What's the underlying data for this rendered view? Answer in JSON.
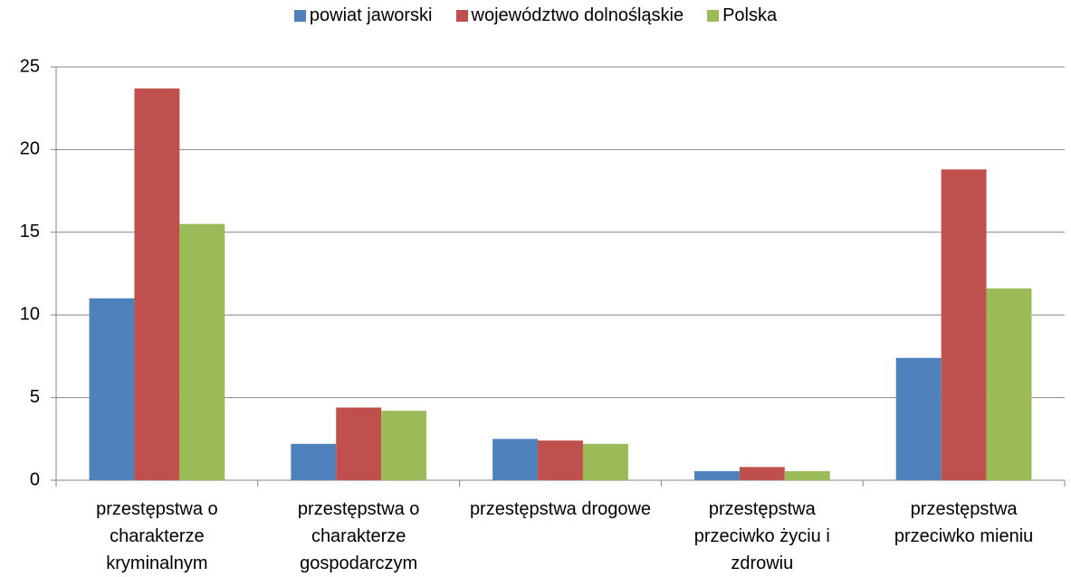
{
  "chart_data": {
    "type": "bar",
    "categories": [
      "przestępstwa o charakterze kryminalnym",
      "przestępstwa o charakterze gospodarczym",
      "przestępstwa drogowe",
      "przestępstwa przeciwko życiu i zdrowiu",
      "przestępstwa przeciwko mieniu"
    ],
    "series": [
      {
        "name": "powiat jaworski",
        "color": "#4f81bd",
        "values": [
          11.0,
          2.2,
          2.5,
          0.55,
          7.4
        ]
      },
      {
        "name": "województwo dolnośląskie",
        "color": "#c0504d",
        "values": [
          23.7,
          4.4,
          2.4,
          0.8,
          18.8
        ]
      },
      {
        "name": "Polska",
        "color": "#9bbb59",
        "values": [
          15.5,
          4.2,
          2.2,
          0.55,
          11.6
        ]
      }
    ],
    "ylim": [
      0,
      25
    ],
    "yticks": [
      0,
      5,
      10,
      15,
      20,
      25
    ],
    "grid": true,
    "legend": "top"
  }
}
